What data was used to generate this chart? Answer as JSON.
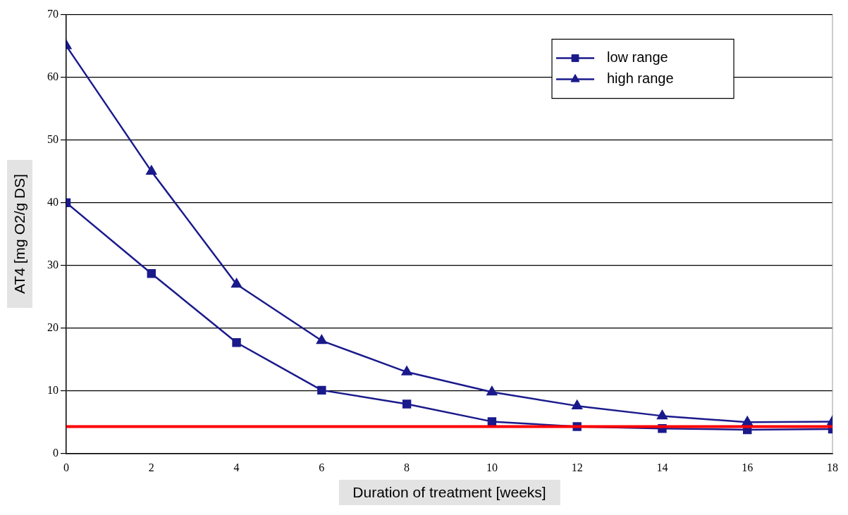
{
  "chart_data": {
    "type": "line",
    "xlabel": "Duration of treatment [weeks]",
    "ylabel": "AT4 [mg O2/g DS]",
    "x": [
      0,
      2,
      4,
      6,
      8,
      10,
      12,
      14,
      16,
      18
    ],
    "series": [
      {
        "name": "low range",
        "color": "#1a1a8c",
        "marker": "square",
        "values": [
          40,
          28.7,
          17.7,
          10.1,
          7.9,
          5.1,
          4.3,
          4.0,
          3.8,
          3.9
        ]
      },
      {
        "name": "high range",
        "color": "#1a1a8c",
        "marker": "triangle",
        "values": [
          65,
          45,
          27,
          18,
          13,
          9.8,
          7.6,
          6.0,
          5.0,
          5.1
        ]
      }
    ],
    "xlim": [
      0,
      18
    ],
    "xticks": [
      0,
      2,
      4,
      6,
      8,
      10,
      12,
      14,
      16,
      18
    ],
    "ylim": [
      0,
      70
    ],
    "yticks": [
      0,
      10,
      20,
      30,
      40,
      50,
      60,
      70
    ],
    "ref_lines": [
      {
        "axis": "y",
        "value": 4.3,
        "color": "#ff0000"
      }
    ],
    "grid": "y",
    "legend": "top right"
  }
}
